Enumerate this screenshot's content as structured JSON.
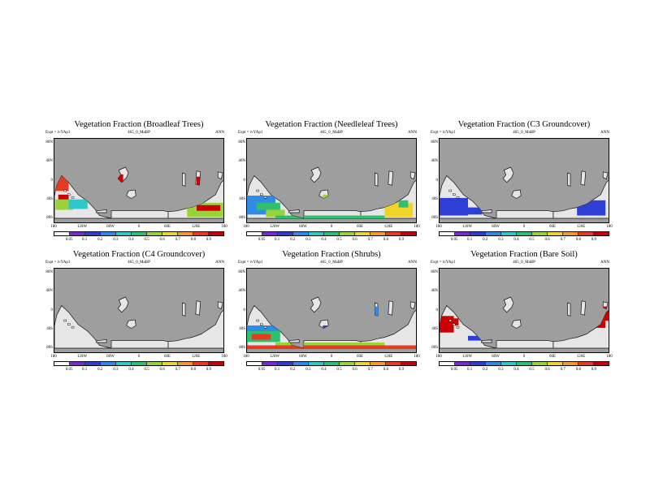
{
  "colors": {
    "ocean": "#9e9e9e",
    "land_zero": "#e6e6e6",
    "scale": [
      "#ffffff",
      "#7a2bd0",
      "#2f3fd6",
      "#2f8be6",
      "#2ec8c8",
      "#2ebf70",
      "#9ad23a",
      "#f0d42a",
      "#f59a25",
      "#e83a1e",
      "#cc0000"
    ]
  },
  "common": {
    "expt_label": "Expt = ivYAp1",
    "case_label": "465_0_MaBP",
    "season_label": "ANN",
    "lat_ticks": [
      "80N",
      "40N",
      "0",
      "40S",
      "80S"
    ],
    "lon_ticks": [
      "180",
      "120W",
      "60W",
      "0",
      "60E",
      "120E",
      "180"
    ],
    "colorbar_ticks": [
      "0.05",
      "0.1",
      "0.2",
      "0.3",
      "0.4",
      "0.5",
      "0.6",
      "0.7",
      "0.8",
      "0.9"
    ]
  },
  "chart_data": [
    {
      "type": "heatmap",
      "title": "Vegetation Fraction (Broadleaf Trees)",
      "xlabel": "",
      "ylabel": "",
      "xlim": [
        -180,
        180
      ],
      "ylim": [
        -90,
        90
      ],
      "colorbar_range": [
        0,
        1
      ],
      "regions": [
        {
          "lon": [
            -180,
            -150
          ],
          "lat": [
            -20,
            10
          ],
          "value": 0.85
        },
        {
          "lon": [
            -172,
            -150
          ],
          "lat": [
            -48,
            -28
          ],
          "value": 0.95
        },
        {
          "lon": [
            -178,
            -140
          ],
          "lat": [
            -60,
            -38
          ],
          "value": 0.5
        },
        {
          "lon": [
            -150,
            -110
          ],
          "lat": [
            -58,
            -38
          ],
          "value": 0.35
        },
        {
          "lon": [
            -60,
            -35
          ],
          "lat": [
            -15,
            15
          ],
          "value": 0.95
        },
        {
          "lon": [
            -45,
            -30
          ],
          "lat": [
            -45,
            -25
          ],
          "value": 0.95
        },
        {
          "lon": [
            -30,
            -5
          ],
          "lat": [
            30,
            40
          ],
          "value": 0.95
        },
        {
          "lon": [
            120,
            135
          ],
          "lat": [
            -20,
            10
          ],
          "value": 0.95
        },
        {
          "lon": [
            130,
            145
          ],
          "lat": [
            10,
            30
          ],
          "value": 0.8
        },
        {
          "lon": [
            100,
            180
          ],
          "lat": [
            -75,
            -45
          ],
          "value": 0.5
        },
        {
          "lon": [
            120,
            170
          ],
          "lat": [
            -62,
            -50
          ],
          "value": 0.95
        }
      ]
    },
    {
      "type": "heatmap",
      "title": "Vegetation Fraction (Needleleaf Trees)",
      "xlabel": "",
      "ylabel": "",
      "xlim": [
        -180,
        180
      ],
      "ylim": [
        -90,
        90
      ],
      "colorbar_range": [
        0,
        1
      ],
      "regions": [
        {
          "lon": [
            -180,
            -120
          ],
          "lat": [
            -70,
            -30
          ],
          "value": 0.25
        },
        {
          "lon": [
            -160,
            -110
          ],
          "lat": [
            -60,
            -45
          ],
          "value": 0.45
        },
        {
          "lon": [
            -140,
            -100
          ],
          "lat": [
            -75,
            -60
          ],
          "value": 0.55
        },
        {
          "lon": [
            -20,
            10
          ],
          "lat": [
            -40,
            -28
          ],
          "value": 0.55
        },
        {
          "lon": [
            0,
            20
          ],
          "lat": [
            30,
            38
          ],
          "value": 0.15
        },
        {
          "lon": [
            110,
            170
          ],
          "lat": [
            -75,
            -45
          ],
          "value": 0.65
        },
        {
          "lon": [
            140,
            160
          ],
          "lat": [
            -55,
            -40
          ],
          "value": 0.45
        },
        {
          "lon": [
            -120,
            110
          ],
          "lat": [
            -78,
            -72
          ],
          "value": 0.4
        }
      ]
    },
    {
      "type": "heatmap",
      "title": "Vegetation Fraction (C3 Groundcover)",
      "xlabel": "",
      "ylabel": "",
      "xlim": [
        -180,
        180
      ],
      "ylim": [
        -90,
        90
      ],
      "colorbar_range": [
        0,
        1
      ],
      "regions": [
        {
          "lon": [
            -180,
            -120
          ],
          "lat": [
            -72,
            -35
          ],
          "value": 0.1
        },
        {
          "lon": [
            -130,
            -90
          ],
          "lat": [
            -70,
            -55
          ],
          "value": 0.15
        },
        {
          "lon": [
            110,
            170
          ],
          "lat": [
            -72,
            -40
          ],
          "value": 0.1
        },
        {
          "lon": [
            140,
            165
          ],
          "lat": [
            20,
            30
          ],
          "value": 0.1
        }
      ]
    },
    {
      "type": "heatmap",
      "title": "Vegetation Fraction (C4 Groundcover)",
      "xlabel": "",
      "ylabel": "",
      "xlim": [
        -180,
        180
      ],
      "ylim": [
        -90,
        90
      ],
      "colorbar_range": [
        0,
        1
      ],
      "regions": []
    },
    {
      "type": "heatmap",
      "title": "Vegetation Fraction (Shrubs)",
      "xlabel": "",
      "ylabel": "",
      "xlim": [
        -180,
        180
      ],
      "ylim": [
        -90,
        90
      ],
      "colorbar_range": [
        0,
        1
      ],
      "regions": [
        {
          "lon": [
            -180,
            -110
          ],
          "lat": [
            -65,
            -40
          ],
          "value": 0.45
        },
        {
          "lon": [
            -170,
            -130
          ],
          "lat": [
            -60,
            -48
          ],
          "value": 0.8
        },
        {
          "lon": [
            -180,
            -110
          ],
          "lat": [
            -42,
            -30
          ],
          "value": 0.2
        },
        {
          "lon": [
            -180,
            180
          ],
          "lat": [
            -80,
            -72
          ],
          "value": 0.8
        },
        {
          "lon": [
            -120,
            110
          ],
          "lat": [
            -72,
            -66
          ],
          "value": 0.5
        },
        {
          "lon": [
            90,
            110
          ],
          "lat": [
            -20,
            10
          ],
          "value": 0.2
        },
        {
          "lon": [
            -20,
            10
          ],
          "lat": [
            -40,
            -30
          ],
          "value": 0.15
        }
      ]
    },
    {
      "type": "heatmap",
      "title": "Vegetation Fraction (Bare Soil)",
      "xlabel": "",
      "ylabel": "",
      "xlim": [
        -180,
        180
      ],
      "ylim": [
        -90,
        90
      ],
      "colorbar_range": [
        0,
        1
      ],
      "regions": [
        {
          "lon": [
            -180,
            -150
          ],
          "lat": [
            -45,
            -10
          ],
          "value": 0.95
        },
        {
          "lon": [
            -160,
            -140
          ],
          "lat": [
            -30,
            -15
          ],
          "value": 0.9
        },
        {
          "lon": [
            145,
            180
          ],
          "lat": [
            -20,
            10
          ],
          "value": 0.95
        },
        {
          "lon": [
            140,
            165
          ],
          "lat": [
            20,
            30
          ],
          "value": 0.15
        },
        {
          "lon": [
            130,
            170
          ],
          "lat": [
            -35,
            -20
          ],
          "value": 0.9
        },
        {
          "lon": [
            -120,
            -60
          ],
          "lat": [
            -62,
            -52
          ],
          "value": 0.1
        }
      ]
    }
  ]
}
